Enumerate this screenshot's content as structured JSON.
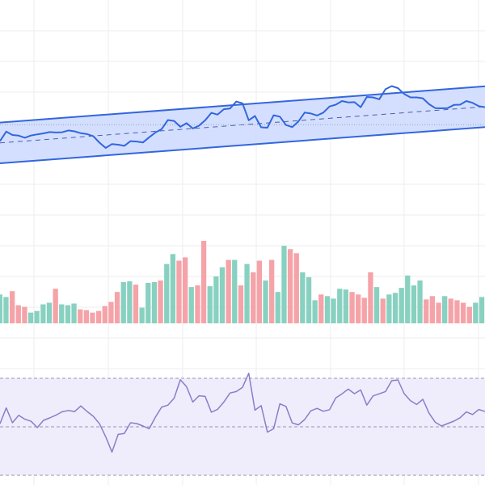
{
  "chart_data": [
    {
      "panel": "price",
      "type": "line",
      "title": "",
      "xlabel": "",
      "ylabel": "",
      "grid": true,
      "colors": {
        "line": "#3366dd",
        "band_fill": "#ccd9ff",
        "band_edge": "#3366dd",
        "midline": "#4a5fa8",
        "ref_line": "#9aa3b5"
      },
      "ylim": [
        0,
        100
      ],
      "reference_level": 52,
      "regression_channel": {
        "center_start": 44,
        "center_end": 60,
        "half_width": 9
      },
      "values": [
        44.8,
        49.0,
        47.5,
        47.2,
        46.3,
        47.3,
        47.8,
        48.2,
        48.8,
        48.6,
        48.7,
        49.5,
        49.1,
        48.3,
        47.9,
        47.0,
        44.1,
        41.8,
        43.5,
        43.2,
        42.7,
        44.8,
        44.6,
        44.2,
        46.5,
        48.6,
        50.1,
        54.1,
        53.7,
        51.1,
        52.7,
        50.4,
        51.6,
        54.0,
        57.3,
        56.5,
        58.9,
        59.2,
        62.3,
        61.5,
        54.0,
        55.9,
        50.9,
        50.7,
        56.2,
        55.6,
        51.9,
        51.0,
        53.5,
        57.4,
        57.0,
        56.1,
        57.4,
        60.1,
        60.9,
        62.5,
        61.9,
        62.0,
        59.8,
        64.3,
        64.1,
        63.3,
        67.7,
        69.1,
        68.2,
        65.6,
        64.1,
        64.1,
        63.7,
        61.1,
        59.4,
        59.3,
        59.4,
        60.8,
        60.9,
        62.5,
        61.7,
        60.2,
        59.8
      ]
    },
    {
      "panel": "volume",
      "type": "bar",
      "title": "",
      "xlabel": "",
      "ylabel": "",
      "grid": true,
      "ylim": [
        0,
        100
      ],
      "colors": {
        "up": "#88d1c0",
        "down": "#f5a3a8"
      },
      "values": [
        35,
        32,
        39,
        22,
        20,
        13,
        15,
        23,
        25,
        42,
        23,
        22,
        24,
        17,
        16,
        13,
        15,
        21,
        26,
        38,
        50,
        51,
        47,
        19,
        49,
        50,
        52,
        72,
        84,
        76,
        80,
        44,
        46,
        100,
        45,
        57,
        68,
        77,
        77,
        46,
        72,
        62,
        76,
        52,
        77,
        38,
        94,
        90,
        85,
        62,
        56,
        28,
        35,
        33,
        30,
        42,
        41,
        38,
        35,
        31,
        62,
        44,
        30,
        35,
        37,
        43,
        58,
        46,
        52,
        29,
        33,
        25,
        33,
        30,
        28,
        25,
        20,
        25,
        32
      ],
      "directions": [
        "up",
        "up",
        "down",
        "down",
        "down",
        "up",
        "up",
        "up",
        "up",
        "down",
        "up",
        "up",
        "up",
        "down",
        "down",
        "down",
        "down",
        "down",
        "down",
        "down",
        "up",
        "up",
        "down",
        "up",
        "up",
        "up",
        "down",
        "up",
        "up",
        "down",
        "down",
        "up",
        "down",
        "down",
        "up",
        "up",
        "up",
        "down",
        "up",
        "down",
        "up",
        "down",
        "down",
        "up",
        "down",
        "up",
        "up",
        "down",
        "down",
        "up",
        "up",
        "up",
        "down",
        "up",
        "up",
        "up",
        "up",
        "down",
        "down",
        "down",
        "down",
        "up",
        "down",
        "up",
        "up",
        "up",
        "up",
        "up",
        "up",
        "down",
        "down",
        "down",
        "up",
        "down",
        "down",
        "down",
        "down",
        "up",
        "up"
      ]
    },
    {
      "panel": "oscillator",
      "type": "line",
      "title": "",
      "xlabel": "",
      "ylabel": "",
      "grid": true,
      "ylim": [
        0,
        100
      ],
      "colors": {
        "line": "#8c7cc9",
        "band_fill": "#efedfb",
        "dash": "#9a93b4"
      },
      "levels": {
        "upper": 80,
        "middle": 50,
        "lower": 20
      },
      "values": [
        51.9,
        61.7,
        52.5,
        57.1,
        54.7,
        53.4,
        49.5,
        54.0,
        55.5,
        57.2,
        59.3,
        60.1,
        59.4,
        62.9,
        59.5,
        56.5,
        51.9,
        43.8,
        34.4,
        45.3,
        45.9,
        52.5,
        52.0,
        50.5,
        48.8,
        56.0,
        62.2,
        63.4,
        67.7,
        79.1,
        74.8,
        65.3,
        69.2,
        68.8,
        59.0,
        60.8,
        65.3,
        70.9,
        71.8,
        74.4,
        83.1,
        60.3,
        63.1,
        46.7,
        48.8,
        64.2,
        62.6,
        52.4,
        51.2,
        54.5,
        59.9,
        61.4,
        59.6,
        60.6,
        67.9,
        70.4,
        73.3,
        70.5,
        72.8,
        63.4,
        69.1,
        70.4,
        71.8,
        78.5,
        79.0,
        70.5,
        66.2,
        63.8,
        67.0,
        58.4,
        52.8,
        50.5,
        52.0,
        53.5,
        55.6,
        59.2,
        57.6,
        60.7,
        59.5
      ]
    }
  ]
}
